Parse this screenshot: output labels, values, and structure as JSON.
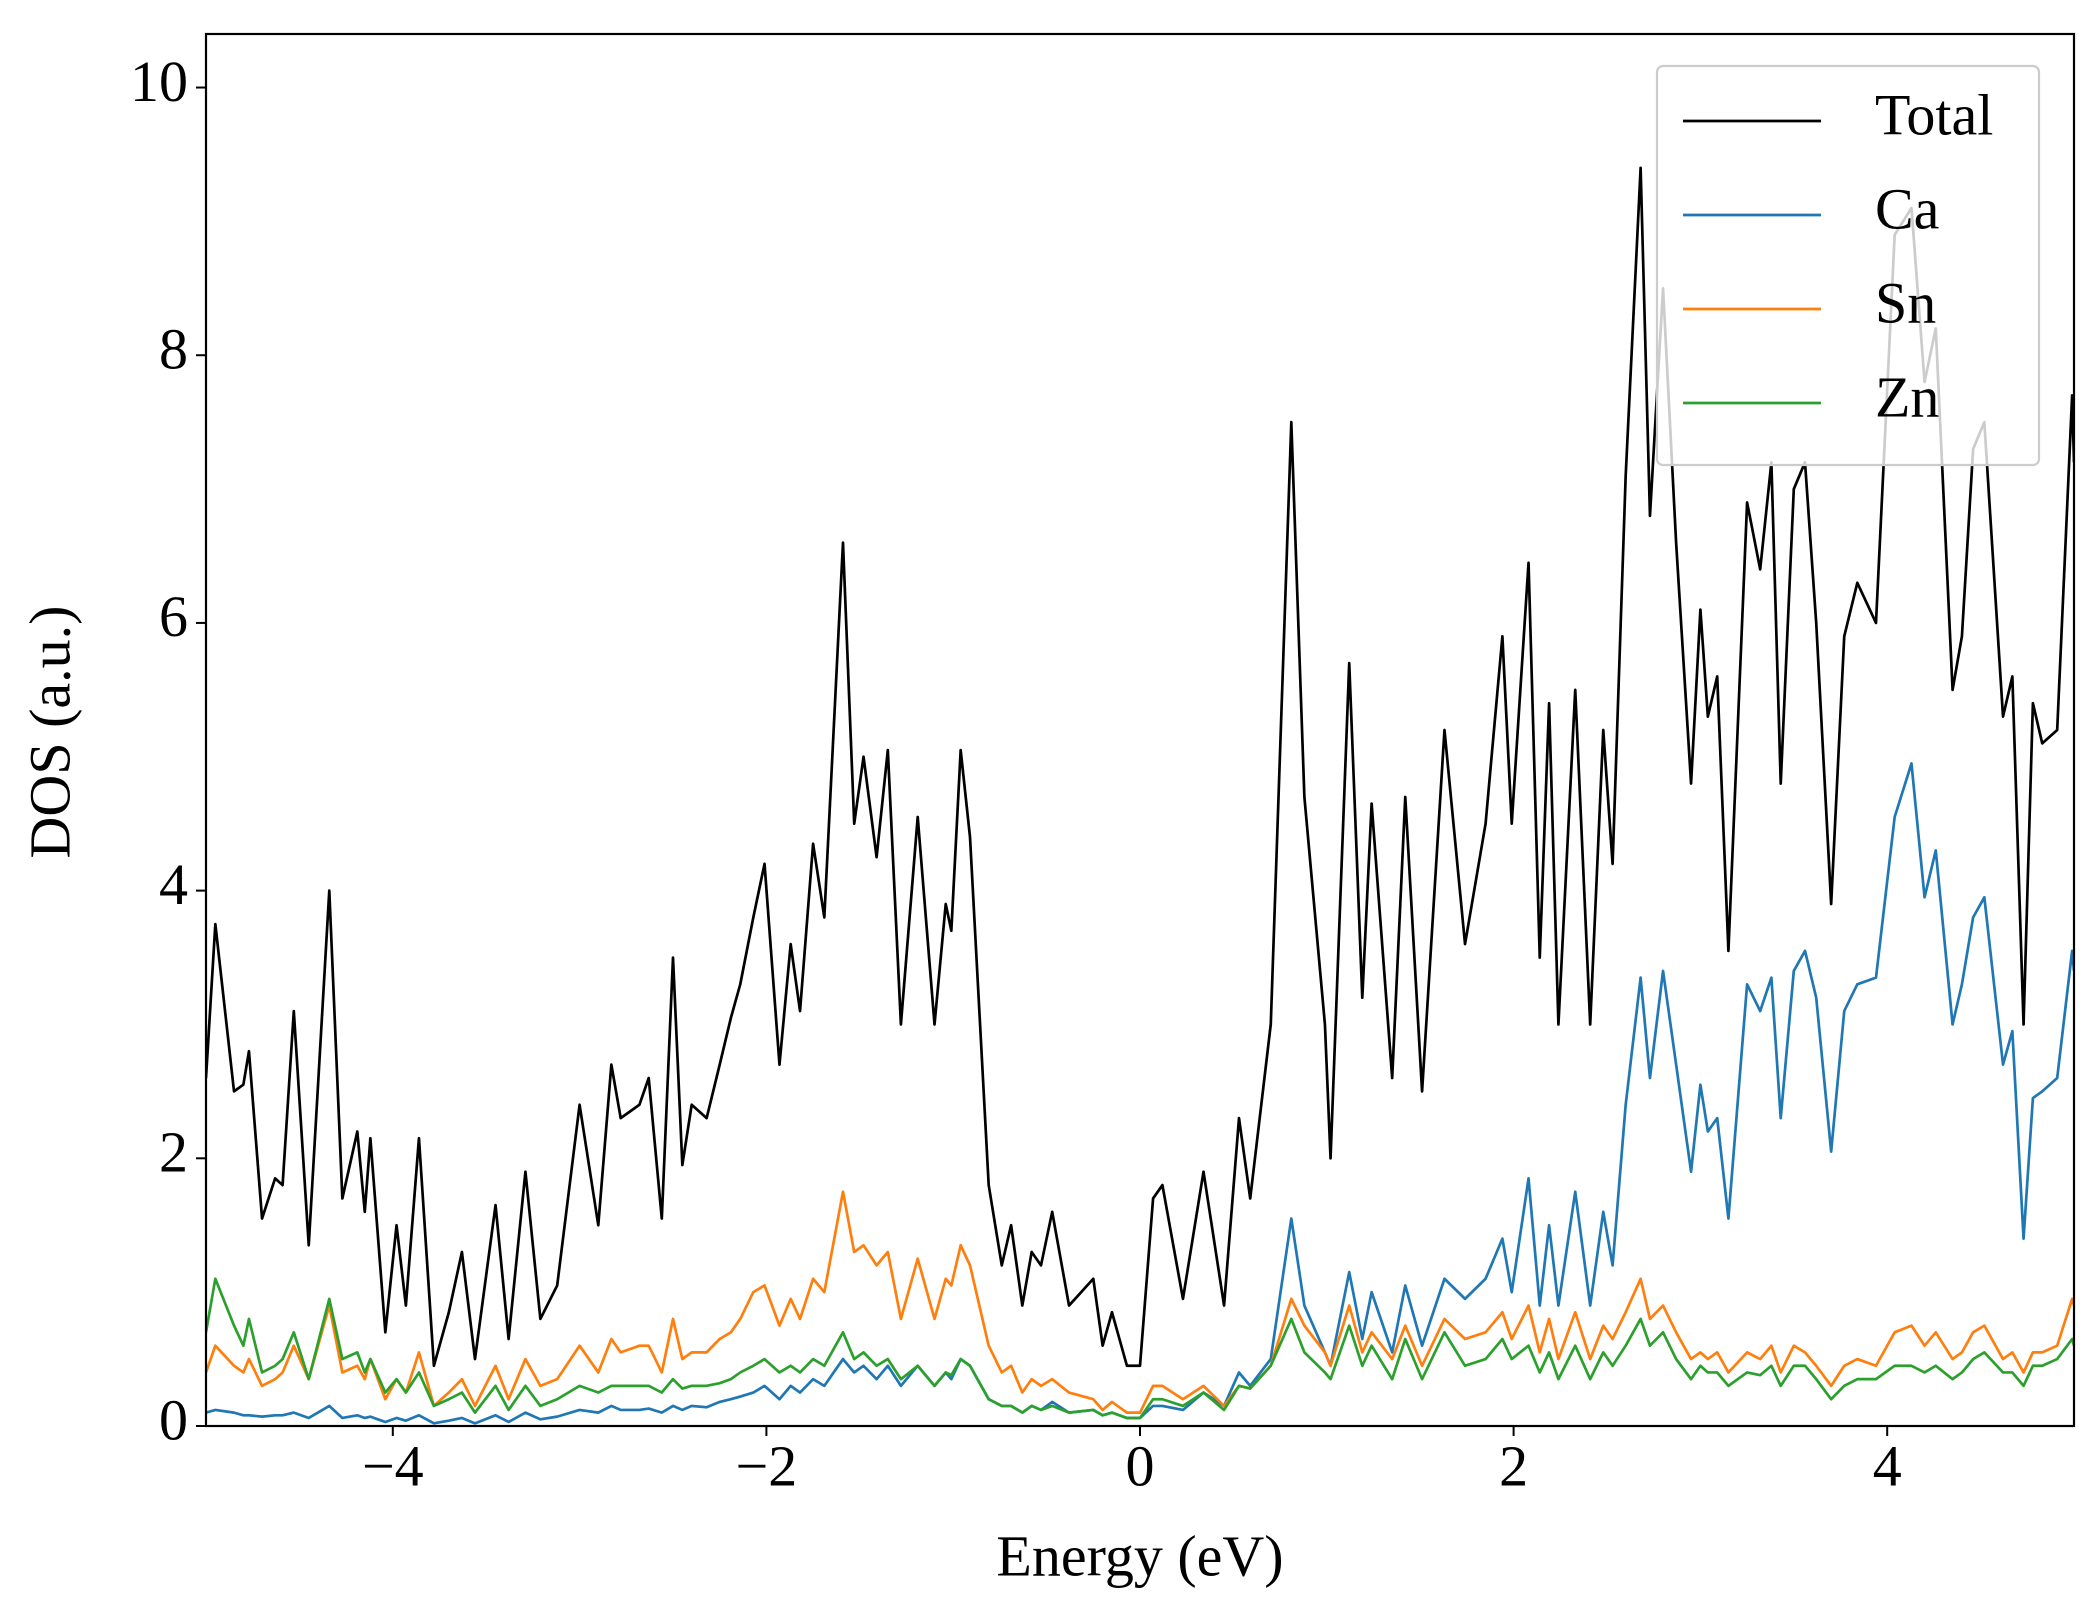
{
  "chart_data": {
    "type": "line",
    "xlabel": "Energy (eV)",
    "ylabel": "DOS (a.u.)",
    "xlim": [
      -5,
      5
    ],
    "ylim": [
      0,
      10.4
    ],
    "xticks": [
      {
        "value": -4,
        "label": "−4"
      },
      {
        "value": -2,
        "label": "−2"
      },
      0,
      2,
      4
    ],
    "yticks": [
      0,
      2,
      4,
      6,
      8,
      10
    ],
    "legend": "upper right",
    "x": [
      -5.0,
      -4.95,
      -4.85,
      -4.8,
      -4.77,
      -4.7,
      -4.63,
      -4.59,
      -4.53,
      -4.45,
      -4.34,
      -4.27,
      -4.19,
      -4.15,
      -4.12,
      -4.04,
      -3.98,
      -3.93,
      -3.86,
      -3.78,
      -3.7,
      -3.63,
      -3.56,
      -3.45,
      -3.38,
      -3.29,
      -3.21,
      -3.12,
      -3.0,
      -2.9,
      -2.83,
      -2.78,
      -2.68,
      -2.63,
      -2.56,
      -2.5,
      -2.45,
      -2.4,
      -2.32,
      -2.25,
      -2.19,
      -2.14,
      -2.07,
      -2.01,
      -1.93,
      -1.87,
      -1.82,
      -1.75,
      -1.69,
      -1.59,
      -1.53,
      -1.48,
      -1.41,
      -1.35,
      -1.28,
      -1.19,
      -1.1,
      -1.04,
      -1.01,
      -0.96,
      -0.91,
      -0.81,
      -0.74,
      -0.69,
      -0.63,
      -0.58,
      -0.53,
      -0.47,
      -0.38,
      -0.25,
      -0.2,
      -0.15,
      -0.07,
      0,
      0.07,
      0.12,
      0.23,
      0.34,
      0.45,
      0.53,
      0.59,
      0.7,
      0.81,
      0.88,
      0.99,
      1.02,
      1.12,
      1.19,
      1.24,
      1.35,
      1.42,
      1.51,
      1.63,
      1.74,
      1.85,
      1.94,
      1.99,
      2.08,
      2.14,
      2.19,
      2.24,
      2.33,
      2.41,
      2.48,
      2.53,
      2.6,
      2.68,
      2.73,
      2.8,
      2.87,
      2.95,
      3.0,
      3.04,
      3.09,
      3.15,
      3.25,
      3.32,
      3.38,
      3.43,
      3.5,
      3.56,
      3.62,
      3.7,
      3.77,
      3.84,
      3.94,
      4.04,
      4.13,
      4.2,
      4.26,
      4.35,
      4.4,
      4.46,
      4.52,
      4.62,
      4.67,
      4.73,
      4.78,
      4.83,
      4.91,
      4.99,
      5.0
    ],
    "series": [
      {
        "name": "Total",
        "color": "#000000",
        "values": [
          2.6,
          3.75,
          2.5,
          2.55,
          2.8,
          1.55,
          1.85,
          1.8,
          3.1,
          1.35,
          4.0,
          1.7,
          2.2,
          1.6,
          2.15,
          0.7,
          1.5,
          0.9,
          2.15,
          0.45,
          0.85,
          1.3,
          0.5,
          1.65,
          0.65,
          1.9,
          0.8,
          1.05,
          2.4,
          1.5,
          2.7,
          2.3,
          2.4,
          2.6,
          1.55,
          3.5,
          1.95,
          2.4,
          2.3,
          2.7,
          3.05,
          3.3,
          3.8,
          4.2,
          2.7,
          3.6,
          3.1,
          4.35,
          3.8,
          6.6,
          4.5,
          5.0,
          4.25,
          5.05,
          3.0,
          4.55,
          3.0,
          3.9,
          3.7,
          5.05,
          4.4,
          1.8,
          1.2,
          1.5,
          0.9,
          1.3,
          1.2,
          1.6,
          0.9,
          1.1,
          0.6,
          0.85,
          0.45,
          0.45,
          1.7,
          1.8,
          0.95,
          1.9,
          0.9,
          2.3,
          1.7,
          3.0,
          7.5,
          4.7,
          3.0,
          2.0,
          5.7,
          3.2,
          4.65,
          2.6,
          4.7,
          2.5,
          5.2,
          3.6,
          4.5,
          5.9,
          4.5,
          6.45,
          3.5,
          5.4,
          3.0,
          5.5,
          3.0,
          5.2,
          4.2,
          7.1,
          9.4,
          6.8,
          8.5,
          6.6,
          4.8,
          6.1,
          5.3,
          5.6,
          3.55,
          6.9,
          6.4,
          7.2,
          4.8,
          7.0,
          7.2,
          6.0,
          3.9,
          5.9,
          6.3,
          6.0,
          8.9,
          9.1,
          7.8,
          8.2,
          5.5,
          5.9,
          7.3,
          7.5,
          5.3,
          5.6,
          3.0,
          5.4,
          5.1,
          5.2,
          7.7,
          7.2
        ]
      },
      {
        "name": "Ca",
        "color": "#1f77b4",
        "values": [
          0.1,
          0.12,
          0.1,
          0.08,
          0.08,
          0.07,
          0.08,
          0.08,
          0.1,
          0.06,
          0.15,
          0.06,
          0.08,
          0.06,
          0.07,
          0.03,
          0.06,
          0.04,
          0.08,
          0.02,
          0.04,
          0.06,
          0.02,
          0.08,
          0.03,
          0.1,
          0.05,
          0.07,
          0.12,
          0.1,
          0.15,
          0.12,
          0.12,
          0.13,
          0.1,
          0.15,
          0.12,
          0.15,
          0.14,
          0.18,
          0.2,
          0.22,
          0.25,
          0.3,
          0.2,
          0.3,
          0.25,
          0.35,
          0.3,
          0.5,
          0.4,
          0.45,
          0.35,
          0.45,
          0.3,
          0.45,
          0.3,
          0.4,
          0.35,
          0.5,
          0.45,
          0.2,
          0.15,
          0.15,
          0.1,
          0.15,
          0.12,
          0.18,
          0.1,
          0.12,
          0.08,
          0.1,
          0.06,
          0.06,
          0.15,
          0.15,
          0.12,
          0.25,
          0.15,
          0.4,
          0.3,
          0.5,
          1.55,
          0.9,
          0.55,
          0.45,
          1.15,
          0.65,
          1.0,
          0.55,
          1.05,
          0.6,
          1.1,
          0.95,
          1.1,
          1.4,
          1.0,
          1.85,
          0.9,
          1.5,
          0.9,
          1.75,
          0.9,
          1.6,
          1.2,
          2.4,
          3.35,
          2.6,
          3.4,
          2.7,
          1.9,
          2.55,
          2.2,
          2.3,
          1.55,
          3.3,
          3.1,
          3.35,
          2.3,
          3.4,
          3.55,
          3.2,
          2.05,
          3.1,
          3.3,
          3.35,
          4.55,
          4.95,
          3.95,
          4.3,
          3.0,
          3.3,
          3.8,
          3.95,
          2.7,
          2.95,
          1.4,
          2.45,
          2.5,
          2.6,
          3.55,
          3.4
        ]
      },
      {
        "name": "Sn",
        "color": "#ff7f0e",
        "values": [
          0.4,
          0.6,
          0.45,
          0.4,
          0.5,
          0.3,
          0.35,
          0.4,
          0.6,
          0.35,
          0.9,
          0.4,
          0.45,
          0.35,
          0.5,
          0.2,
          0.35,
          0.25,
          0.55,
          0.15,
          0.25,
          0.35,
          0.15,
          0.45,
          0.2,
          0.5,
          0.3,
          0.35,
          0.6,
          0.4,
          0.65,
          0.55,
          0.6,
          0.6,
          0.4,
          0.8,
          0.5,
          0.55,
          0.55,
          0.65,
          0.7,
          0.8,
          1.0,
          1.05,
          0.75,
          0.95,
          0.8,
          1.1,
          1.0,
          1.75,
          1.3,
          1.35,
          1.2,
          1.3,
          0.8,
          1.25,
          0.8,
          1.1,
          1.05,
          1.35,
          1.2,
          0.6,
          0.4,
          0.45,
          0.25,
          0.35,
          0.3,
          0.35,
          0.25,
          0.2,
          0.12,
          0.18,
          0.1,
          0.1,
          0.3,
          0.3,
          0.2,
          0.3,
          0.15,
          0.3,
          0.28,
          0.45,
          0.95,
          0.75,
          0.55,
          0.45,
          0.9,
          0.55,
          0.7,
          0.5,
          0.75,
          0.45,
          0.8,
          0.65,
          0.7,
          0.85,
          0.65,
          0.9,
          0.55,
          0.8,
          0.5,
          0.85,
          0.5,
          0.75,
          0.65,
          0.85,
          1.1,
          0.8,
          0.9,
          0.7,
          0.5,
          0.55,
          0.5,
          0.55,
          0.4,
          0.55,
          0.5,
          0.6,
          0.4,
          0.6,
          0.55,
          0.45,
          0.3,
          0.45,
          0.5,
          0.45,
          0.7,
          0.75,
          0.6,
          0.7,
          0.5,
          0.55,
          0.7,
          0.75,
          0.5,
          0.55,
          0.4,
          0.55,
          0.55,
          0.6,
          0.95,
          0.9
        ]
      },
      {
        "name": "Zn",
        "color": "#2ca02c",
        "values": [
          0.7,
          1.1,
          0.75,
          0.6,
          0.8,
          0.4,
          0.45,
          0.5,
          0.7,
          0.35,
          0.95,
          0.5,
          0.55,
          0.4,
          0.5,
          0.25,
          0.35,
          0.25,
          0.4,
          0.15,
          0.2,
          0.25,
          0.1,
          0.3,
          0.12,
          0.3,
          0.15,
          0.2,
          0.3,
          0.25,
          0.3,
          0.3,
          0.3,
          0.3,
          0.25,
          0.35,
          0.28,
          0.3,
          0.3,
          0.32,
          0.35,
          0.4,
          0.45,
          0.5,
          0.4,
          0.45,
          0.4,
          0.5,
          0.45,
          0.7,
          0.5,
          0.55,
          0.45,
          0.5,
          0.35,
          0.45,
          0.3,
          0.4,
          0.38,
          0.5,
          0.45,
          0.2,
          0.15,
          0.15,
          0.1,
          0.15,
          0.12,
          0.15,
          0.1,
          0.12,
          0.08,
          0.1,
          0.06,
          0.06,
          0.2,
          0.2,
          0.15,
          0.25,
          0.12,
          0.3,
          0.28,
          0.45,
          0.8,
          0.55,
          0.4,
          0.35,
          0.75,
          0.45,
          0.6,
          0.35,
          0.65,
          0.35,
          0.7,
          0.45,
          0.5,
          0.65,
          0.5,
          0.6,
          0.4,
          0.55,
          0.35,
          0.6,
          0.35,
          0.55,
          0.45,
          0.6,
          0.8,
          0.6,
          0.7,
          0.5,
          0.35,
          0.45,
          0.4,
          0.4,
          0.3,
          0.4,
          0.38,
          0.45,
          0.3,
          0.45,
          0.45,
          0.35,
          0.2,
          0.3,
          0.35,
          0.35,
          0.45,
          0.45,
          0.4,
          0.45,
          0.35,
          0.4,
          0.5,
          0.55,
          0.4,
          0.4,
          0.3,
          0.45,
          0.45,
          0.5,
          0.65,
          0.6
        ]
      }
    ]
  }
}
